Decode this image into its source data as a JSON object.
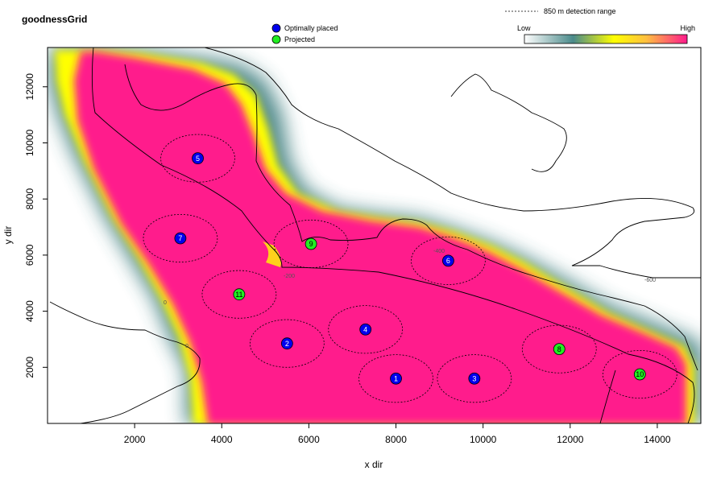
{
  "chart_data": {
    "type": "scatter",
    "title": "goodnessGrid",
    "xlabel": "x dir",
    "ylabel": "y dir",
    "xlim": [
      0,
      15000
    ],
    "ylim": [
      0,
      13400
    ],
    "x_ticks": [
      2000,
      4000,
      6000,
      8000,
      10000,
      12000,
      14000
    ],
    "y_ticks": [
      2000,
      4000,
      6000,
      8000,
      10000,
      12000
    ],
    "detection_range_m": 850,
    "legend": {
      "placement": "top-center",
      "entries": [
        {
          "label": "Optimally placed",
          "color": "#0000ee"
        },
        {
          "label": "Projected",
          "color": "#22ee22"
        }
      ],
      "range_label": "850 m detection range"
    },
    "colorbar": {
      "low_label": "Low",
      "high_label": "High",
      "colors": [
        "#ffffff",
        "#4a8a8a",
        "#ffff00",
        "#ff1a8c"
      ]
    },
    "contour_labels": [
      "-200",
      "-400",
      "-600",
      "0",
      "0"
    ],
    "series": [
      {
        "name": "Optimally placed",
        "points": [
          {
            "id": "1",
            "x": 8000,
            "y": 1600
          },
          {
            "id": "2",
            "x": 5500,
            "y": 2850
          },
          {
            "id": "3",
            "x": 9800,
            "y": 1600
          },
          {
            "id": "4",
            "x": 7300,
            "y": 3350
          },
          {
            "id": "5",
            "x": 3450,
            "y": 9450
          },
          {
            "id": "6",
            "x": 9200,
            "y": 5800
          },
          {
            "id": "7",
            "x": 3050,
            "y": 6600
          }
        ]
      },
      {
        "name": "Projected",
        "points": [
          {
            "id": "8",
            "x": 11750,
            "y": 2650
          },
          {
            "id": "9",
            "x": 6050,
            "y": 6400
          },
          {
            "id": "10",
            "x": 13600,
            "y": 1750
          },
          {
            "id": "11",
            "x": 4400,
            "y": 4600
          }
        ]
      }
    ]
  }
}
